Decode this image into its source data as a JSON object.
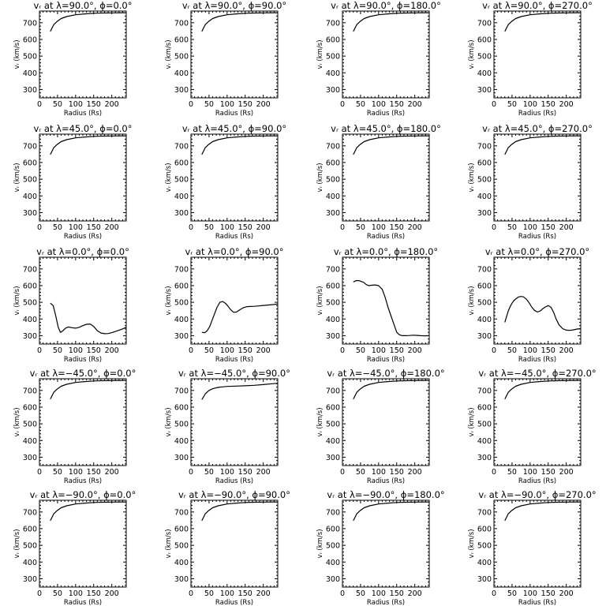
{
  "figure": {
    "rows": 5,
    "cols": 4
  },
  "shared_axes": {
    "xlabel": "Radius (Rs)",
    "ylabel": "vᵣ (km/s)",
    "xlim": [
      0,
      240
    ],
    "ylim": [
      250,
      770
    ],
    "xticks": [
      0,
      50,
      100,
      150,
      200
    ],
    "yticks": [
      300,
      400,
      500,
      600,
      700
    ]
  },
  "chart_data": [
    {
      "type": "line",
      "title": "vᵣ at λ=90.0°, ϕ=0.0°",
      "xlabel": "Radius (Rs)",
      "ylabel": "vᵣ (km/s)",
      "x": [
        30,
        40,
        50,
        60,
        75,
        100,
        125,
        150,
        175,
        200,
        240
      ],
      "values": [
        648,
        690,
        710,
        725,
        737,
        748,
        753,
        757,
        758,
        759,
        760
      ]
    },
    {
      "type": "line",
      "title": "vᵣ at λ=90.0°, ϕ=90.0°",
      "xlabel": "Radius (Rs)",
      "ylabel": "vᵣ (km/s)",
      "x": [
        30,
        40,
        50,
        60,
        75,
        100,
        125,
        150,
        175,
        200,
        240
      ],
      "values": [
        648,
        690,
        710,
        725,
        737,
        748,
        753,
        757,
        758,
        759,
        760
      ]
    },
    {
      "type": "line",
      "title": "vᵣ at λ=90.0°, ϕ=180.0°",
      "xlabel": "Radius (Rs)",
      "ylabel": "vᵣ (km/s)",
      "x": [
        30,
        40,
        50,
        60,
        75,
        100,
        125,
        150,
        175,
        200,
        240
      ],
      "values": [
        648,
        690,
        710,
        725,
        737,
        748,
        753,
        757,
        758,
        759,
        760
      ]
    },
    {
      "type": "line",
      "title": "vᵣ at λ=90.0°, ϕ=270.0°",
      "xlabel": "Radius (Rs)",
      "ylabel": "vᵣ (km/s)",
      "x": [
        30,
        40,
        50,
        60,
        75,
        100,
        125,
        150,
        175,
        200,
        240
      ],
      "values": [
        648,
        690,
        710,
        725,
        737,
        748,
        753,
        757,
        758,
        759,
        760
      ]
    },
    {
      "type": "line",
      "title": "vᵣ at λ=45.0°, ϕ=0.0°",
      "xlabel": "Radius (Rs)",
      "ylabel": "vᵣ (km/s)",
      "x": [
        30,
        40,
        50,
        60,
        75,
        100,
        125,
        150,
        175,
        200,
        240
      ],
      "values": [
        648,
        690,
        710,
        725,
        737,
        748,
        753,
        757,
        758,
        759,
        760
      ]
    },
    {
      "type": "line",
      "title": "vᵣ at λ=45.0°, ϕ=90.0°",
      "xlabel": "Radius (Rs)",
      "ylabel": "vᵣ (km/s)",
      "x": [
        30,
        40,
        50,
        60,
        75,
        100,
        125,
        150,
        175,
        200,
        240
      ],
      "values": [
        648,
        690,
        710,
        725,
        737,
        748,
        753,
        757,
        758,
        759,
        760
      ]
    },
    {
      "type": "line",
      "title": "vᵣ at λ=45.0°, ϕ=180.0°",
      "xlabel": "Radius (Rs)",
      "ylabel": "vᵣ (km/s)",
      "x": [
        30,
        40,
        50,
        60,
        75,
        100,
        125,
        150,
        175,
        200,
        240
      ],
      "values": [
        648,
        690,
        710,
        725,
        737,
        748,
        753,
        757,
        758,
        759,
        760
      ]
    },
    {
      "type": "line",
      "title": "vᵣ at λ=45.0°, ϕ=270.0°",
      "xlabel": "Radius (Rs)",
      "ylabel": "vᵣ (km/s)",
      "x": [
        30,
        40,
        50,
        60,
        75,
        100,
        125,
        150,
        175,
        200,
        240
      ],
      "values": [
        648,
        690,
        710,
        725,
        737,
        748,
        753,
        757,
        758,
        759,
        760
      ]
    },
    {
      "type": "line",
      "title": "vᵣ at λ=0.0°, ϕ=0.0°",
      "xlabel": "Radius (Rs)",
      "ylabel": "vᵣ (km/s)",
      "x": [
        30,
        38,
        45,
        52,
        58,
        65,
        72,
        80,
        90,
        100,
        110,
        120,
        130,
        140,
        150,
        160,
        170,
        180,
        190,
        200,
        210,
        220,
        230,
        240
      ],
      "values": [
        495,
        480,
        420,
        350,
        320,
        330,
        345,
        352,
        348,
        345,
        350,
        360,
        368,
        370,
        355,
        330,
        316,
        312,
        313,
        318,
        325,
        333,
        341,
        350
      ]
    },
    {
      "type": "line",
      "title": "vᵣ at λ=0.0°, ϕ=90.0°",
      "xlabel": "Radius (Rs)",
      "ylabel": "vᵣ (km/s)",
      "x": [
        30,
        38,
        45,
        52,
        58,
        65,
        72,
        80,
        88,
        95,
        102,
        110,
        118,
        126,
        135,
        145,
        155,
        165,
        175,
        185,
        200,
        215,
        230,
        240
      ],
      "values": [
        320,
        318,
        330,
        355,
        390,
        430,
        470,
        500,
        505,
        495,
        478,
        455,
        440,
        442,
        455,
        468,
        474,
        475,
        476,
        478,
        481,
        484,
        487,
        490
      ]
    },
    {
      "type": "line",
      "title": "vᵣ at λ=0.0°, ϕ=180.0°",
      "xlabel": "Radius (Rs)",
      "ylabel": "vᵣ (km/s)",
      "x": [
        30,
        38,
        45,
        52,
        58,
        65,
        72,
        80,
        90,
        100,
        110,
        118,
        126,
        134,
        142,
        150,
        158,
        166,
        175,
        185,
        195,
        205,
        215,
        230,
        240
      ],
      "values": [
        622,
        630,
        630,
        625,
        620,
        608,
        600,
        602,
        604,
        600,
        578,
        530,
        470,
        420,
        370,
        320,
        305,
        300,
        300,
        301,
        303,
        302,
        300,
        299,
        300
      ]
    },
    {
      "type": "line",
      "title": "vᵣ at λ=0.0°, ϕ=270.0°",
      "xlabel": "Radius (Rs)",
      "ylabel": "vᵣ (km/s)",
      "x": [
        30,
        35,
        40,
        45,
        50,
        55,
        60,
        68,
        75,
        82,
        90,
        98,
        105,
        112,
        120,
        128,
        135,
        142,
        150,
        158,
        165,
        172,
        180,
        190,
        200,
        210,
        220,
        230,
        240
      ],
      "values": [
        380,
        415,
        450,
        475,
        495,
        510,
        520,
        532,
        535,
        532,
        518,
        495,
        470,
        452,
        442,
        448,
        462,
        472,
        480,
        470,
        440,
        400,
        365,
        342,
        333,
        332,
        335,
        340,
        342
      ]
    },
    {
      "type": "line",
      "title": "vᵣ at λ=−45.0°, ϕ=0.0°",
      "xlabel": "Radius (Rs)",
      "ylabel": "vᵣ (km/s)",
      "x": [
        30,
        40,
        50,
        60,
        75,
        100,
        125,
        150,
        175,
        200,
        240
      ],
      "values": [
        648,
        690,
        710,
        725,
        737,
        748,
        753,
        757,
        758,
        759,
        760
      ]
    },
    {
      "type": "line",
      "title": "vᵣ at λ=−45.0°, ϕ=90.0°",
      "xlabel": "Radius (Rs)",
      "ylabel": "vᵣ (km/s)",
      "x": [
        30,
        40,
        50,
        60,
        70,
        80,
        90,
        100,
        125,
        150,
        175,
        200,
        225,
        240
      ],
      "values": [
        645,
        680,
        700,
        710,
        716,
        720,
        722,
        724,
        726,
        728,
        731,
        735,
        740,
        743
      ]
    },
    {
      "type": "line",
      "title": "vᵣ at λ=−45.0°, ϕ=180.0°",
      "xlabel": "Radius (Rs)",
      "ylabel": "vᵣ (km/s)",
      "x": [
        30,
        40,
        50,
        60,
        75,
        100,
        125,
        150,
        175,
        200,
        240
      ],
      "values": [
        648,
        690,
        710,
        725,
        737,
        748,
        753,
        757,
        758,
        759,
        760
      ]
    },
    {
      "type": "line",
      "title": "vᵣ at λ=−45.0°, ϕ=270.0°",
      "xlabel": "Radius (Rs)",
      "ylabel": "vᵣ (km/s)",
      "x": [
        30,
        40,
        50,
        60,
        75,
        100,
        125,
        150,
        175,
        200,
        240
      ],
      "values": [
        648,
        690,
        710,
        725,
        737,
        748,
        753,
        757,
        758,
        759,
        760
      ]
    },
    {
      "type": "line",
      "title": "vᵣ at λ=−90.0°, ϕ=0.0°",
      "xlabel": "Radius (Rs)",
      "ylabel": "vᵣ (km/s)",
      "x": [
        30,
        40,
        50,
        60,
        75,
        100,
        125,
        150,
        175,
        200,
        240
      ],
      "values": [
        648,
        690,
        710,
        725,
        737,
        748,
        753,
        757,
        758,
        759,
        760
      ]
    },
    {
      "type": "line",
      "title": "vᵣ at λ=−90.0°, ϕ=90.0°",
      "xlabel": "Radius (Rs)",
      "ylabel": "vᵣ (km/s)",
      "x": [
        30,
        40,
        50,
        60,
        75,
        100,
        125,
        150,
        175,
        200,
        240
      ],
      "values": [
        648,
        690,
        710,
        725,
        737,
        748,
        753,
        757,
        758,
        759,
        760
      ]
    },
    {
      "type": "line",
      "title": "vᵣ at λ=−90.0°, ϕ=180.0°",
      "xlabel": "Radius (Rs)",
      "ylabel": "vᵣ (km/s)",
      "x": [
        30,
        40,
        50,
        60,
        75,
        100,
        125,
        150,
        175,
        200,
        240
      ],
      "values": [
        648,
        690,
        710,
        725,
        737,
        748,
        753,
        757,
        758,
        759,
        760
      ]
    },
    {
      "type": "line",
      "title": "vᵣ at λ=−90.0°, ϕ=270.0°",
      "xlabel": "Radius (Rs)",
      "ylabel": "vᵣ (km/s)",
      "x": [
        30,
        40,
        50,
        60,
        75,
        100,
        125,
        150,
        175,
        200,
        240
      ],
      "values": [
        648,
        690,
        710,
        725,
        737,
        748,
        753,
        757,
        758,
        759,
        760
      ]
    }
  ]
}
